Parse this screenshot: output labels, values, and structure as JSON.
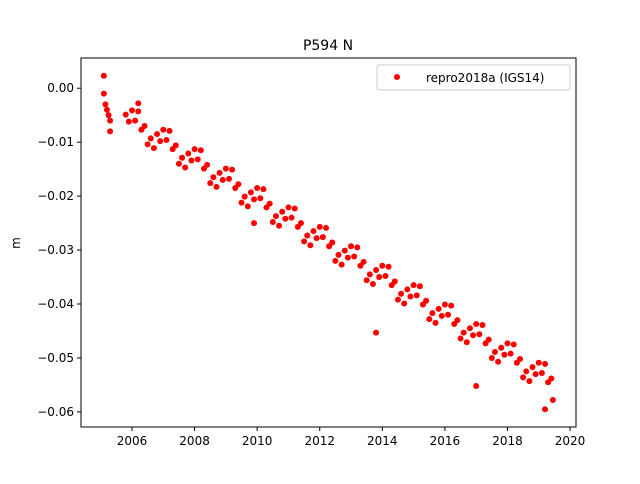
{
  "chart_data": {
    "type": "scatter",
    "title": "P594 N",
    "xlabel": "",
    "ylabel": "m",
    "xlim": [
      2004.37,
      2020.19
    ],
    "ylim": [
      -0.0628,
      0.0056
    ],
    "xticks": [
      2006,
      2008,
      2010,
      2012,
      2014,
      2016,
      2018,
      2020
    ],
    "xtick_labels": [
      "2006",
      "2008",
      "2010",
      "2012",
      "2014",
      "2016",
      "2018",
      "2020"
    ],
    "yticks": [
      0,
      -0.01,
      -0.02,
      -0.03,
      -0.04,
      -0.05,
      -0.06
    ],
    "ytick_labels": [
      "0.00",
      "−0.01",
      "−0.02",
      "−0.03",
      "−0.04",
      "−0.05",
      "−0.06"
    ],
    "grid": false,
    "legend_position": "top-right",
    "series": [
      {
        "name": "repro2018a (IGS14)",
        "color": "#ff0000",
        "marker": "circle",
        "x": [
          2005.1,
          2005.15,
          2005.2,
          2005.25,
          2005.3,
          2005.8,
          2005.9,
          2006.0,
          2006.1,
          2006.2,
          2006.3,
          2006.4,
          2006.5,
          2006.6,
          2006.7,
          2006.8,
          2006.9,
          2007.0,
          2007.1,
          2007.2,
          2007.3,
          2007.4,
          2007.5,
          2007.6,
          2007.7,
          2007.8,
          2007.9,
          2008.0,
          2008.1,
          2008.2,
          2008.3,
          2008.4,
          2008.5,
          2008.6,
          2008.7,
          2008.8,
          2008.9,
          2009.0,
          2009.1,
          2009.2,
          2009.3,
          2009.4,
          2009.5,
          2009.6,
          2009.7,
          2009.8,
          2009.9,
          2010.0,
          2010.1,
          2010.2,
          2010.3,
          2010.4,
          2010.5,
          2010.6,
          2010.7,
          2010.8,
          2010.9,
          2011.0,
          2011.1,
          2011.2,
          2011.3,
          2011.4,
          2011.5,
          2011.6,
          2011.7,
          2011.8,
          2011.9,
          2012.0,
          2012.1,
          2012.2,
          2012.3,
          2012.4,
          2012.5,
          2012.6,
          2012.7,
          2012.8,
          2012.9,
          2013.0,
          2013.1,
          2013.2,
          2013.3,
          2013.4,
          2013.5,
          2013.6,
          2013.7,
          2013.8,
          2013.9,
          2014.0,
          2014.1,
          2014.2,
          2014.3,
          2014.4,
          2014.5,
          2014.6,
          2014.7,
          2014.8,
          2014.9,
          2015.0,
          2015.1,
          2015.2,
          2015.3,
          2015.4,
          2015.5,
          2015.6,
          2015.7,
          2015.8,
          2015.9,
          2016.0,
          2016.1,
          2016.2,
          2016.3,
          2016.4,
          2016.5,
          2016.6,
          2016.7,
          2016.8,
          2016.9,
          2017.0,
          2017.1,
          2017.2,
          2017.3,
          2017.4,
          2017.5,
          2017.6,
          2017.7,
          2017.8,
          2017.9,
          2018.0,
          2018.1,
          2018.2,
          2018.3,
          2018.4,
          2018.5,
          2018.6,
          2018.7,
          2018.8,
          2018.9,
          2019.0,
          2019.1,
          2019.2,
          2019.3,
          2019.4,
          2005.1,
          2005.3,
          2006.2,
          2009.9,
          2013.8,
          2017.0,
          2019.2,
          2019.45
        ],
        "y": [
          -0.001,
          -0.003,
          -0.004,
          -0.005,
          -0.006,
          -0.0049,
          -0.0062,
          -0.0041,
          -0.006,
          -0.0043,
          -0.0077,
          -0.007,
          -0.0104,
          -0.0093,
          -0.0111,
          -0.0085,
          -0.0098,
          -0.0077,
          -0.0096,
          -0.0079,
          -0.0113,
          -0.0106,
          -0.014,
          -0.0129,
          -0.0147,
          -0.0121,
          -0.0134,
          -0.0113,
          -0.0132,
          -0.0115,
          -0.0149,
          -0.0142,
          -0.0176,
          -0.0165,
          -0.0183,
          -0.0157,
          -0.017,
          -0.0149,
          -0.0168,
          -0.0151,
          -0.0185,
          -0.0178,
          -0.0212,
          -0.0201,
          -0.0219,
          -0.0193,
          -0.0206,
          -0.0185,
          -0.0204,
          -0.0187,
          -0.0221,
          -0.0214,
          -0.0248,
          -0.0237,
          -0.0255,
          -0.0229,
          -0.0242,
          -0.0221,
          -0.024,
          -0.0223,
          -0.0257,
          -0.025,
          -0.0284,
          -0.0273,
          -0.0291,
          -0.0265,
          -0.0278,
          -0.0257,
          -0.0276,
          -0.0259,
          -0.0293,
          -0.0286,
          -0.032,
          -0.0309,
          -0.0327,
          -0.0301,
          -0.0314,
          -0.0293,
          -0.0312,
          -0.0295,
          -0.0329,
          -0.0322,
          -0.0356,
          -0.0345,
          -0.0363,
          -0.0337,
          -0.035,
          -0.0329,
          -0.0348,
          -0.0331,
          -0.0365,
          -0.0358,
          -0.0392,
          -0.0381,
          -0.0399,
          -0.0373,
          -0.0386,
          -0.0365,
          -0.0384,
          -0.0367,
          -0.0401,
          -0.0394,
          -0.0428,
          -0.0417,
          -0.0435,
          -0.0409,
          -0.0422,
          -0.0401,
          -0.042,
          -0.0403,
          -0.0437,
          -0.043,
          -0.0464,
          -0.0453,
          -0.0471,
          -0.0445,
          -0.0458,
          -0.0437,
          -0.0456,
          -0.0439,
          -0.0473,
          -0.0466,
          -0.05,
          -0.0489,
          -0.0507,
          -0.0481,
          -0.0494,
          -0.0473,
          -0.0492,
          -0.0475,
          -0.0509,
          -0.0502,
          -0.0536,
          -0.0525,
          -0.0543,
          -0.0517,
          -0.053,
          -0.0509,
          -0.0528,
          -0.0511,
          -0.0545,
          -0.0538,
          0.0023,
          -0.008,
          -0.0028,
          -0.025,
          -0.0453,
          -0.0552,
          -0.0595,
          -0.0578
        ]
      }
    ]
  }
}
